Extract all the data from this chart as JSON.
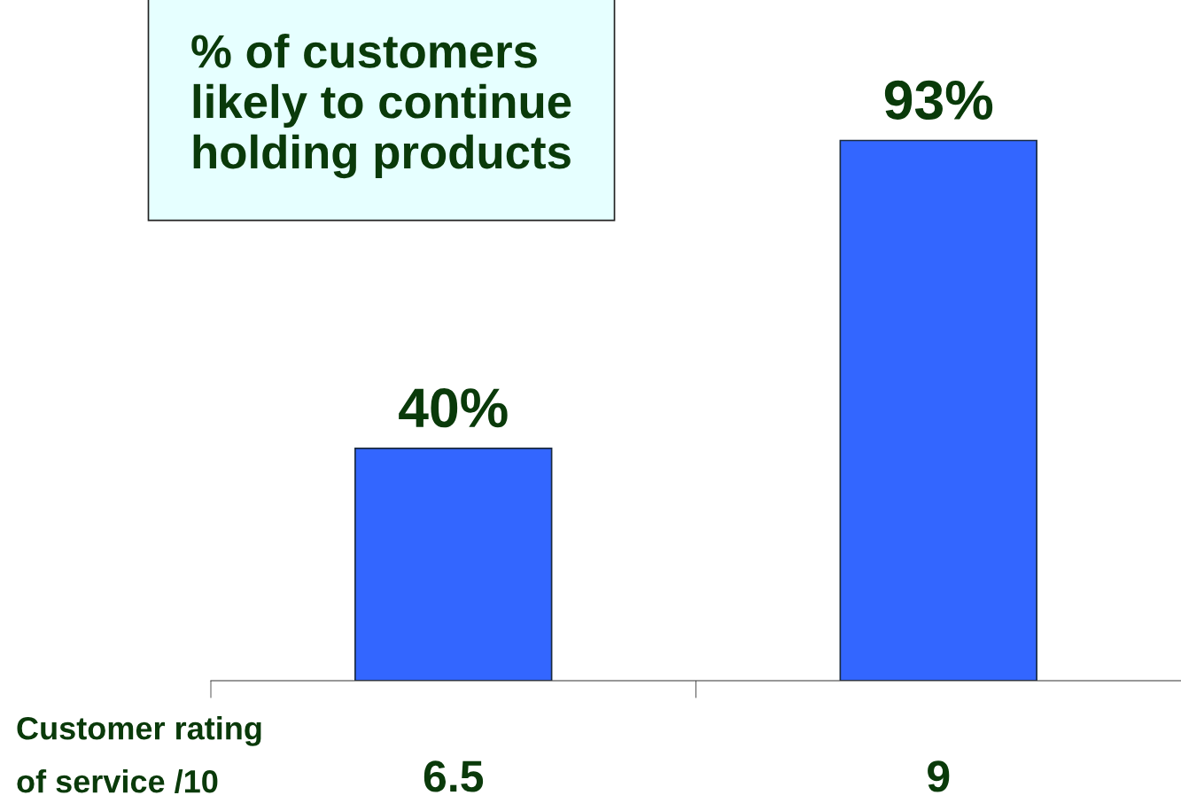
{
  "chart_data": {
    "type": "bar",
    "title": "% of customers\nlikely to continue\nholding products",
    "xlabel": "Customer rating\nof service /10",
    "categories": [
      "6.5",
      "9"
    ],
    "values": [
      40,
      93
    ],
    "color": "#3366ff",
    "relative": false,
    "data_labels": true,
    "value_labels": [
      "40%",
      "93%"
    ],
    "grid": false,
    "legend": false
  }
}
